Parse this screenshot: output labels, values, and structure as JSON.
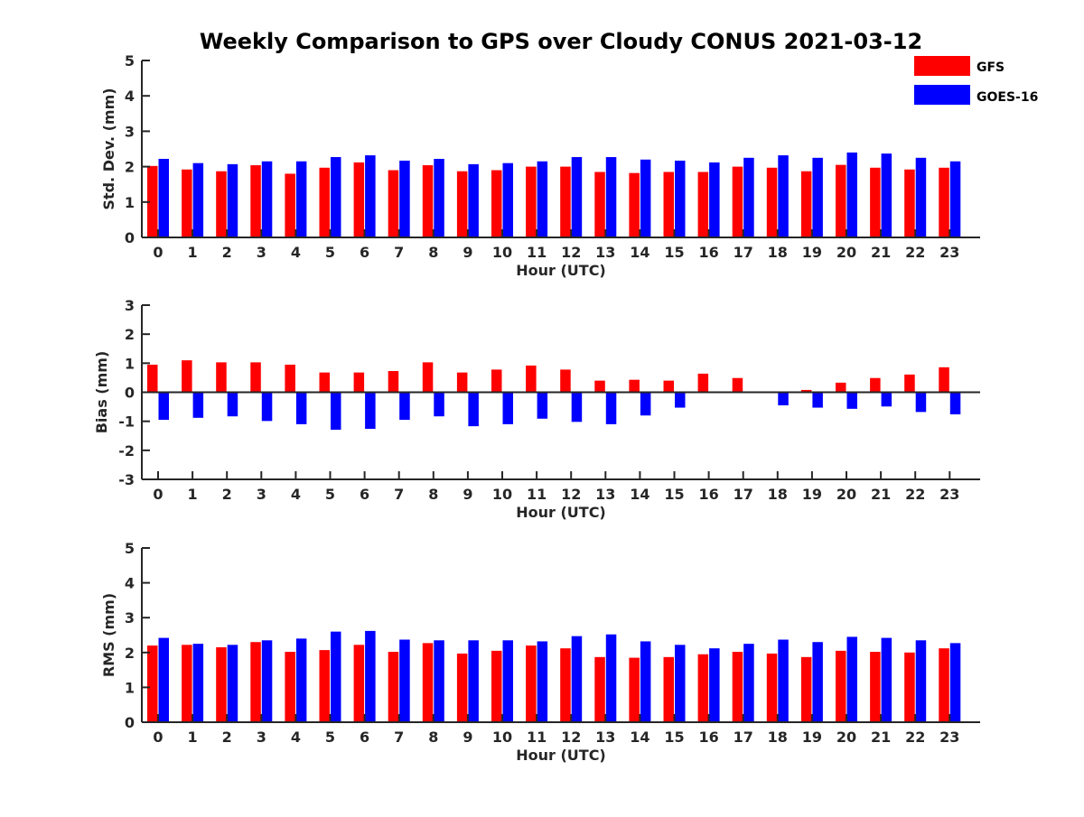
{
  "chart_data": {
    "type": "bar",
    "title": "Weekly Comparison to GPS over Cloudy CONUS 2021-03-12",
    "colors": {
      "GFS": "#ff0000",
      "GOES-16": "#0000ff"
    },
    "legend": {
      "position": "top-right",
      "entries": [
        "GFS",
        "GOES-16"
      ]
    },
    "grid": false,
    "categories": [
      "0",
      "1",
      "2",
      "3",
      "4",
      "5",
      "6",
      "7",
      "8",
      "9",
      "10",
      "11",
      "12",
      "13",
      "14",
      "15",
      "16",
      "17",
      "18",
      "19",
      "20",
      "21",
      "22",
      "23"
    ],
    "panels": [
      {
        "id": "std",
        "ylabel": "Std. Dev. (mm)",
        "xlabel": "Hour (UTC)",
        "ylim": [
          0,
          5
        ],
        "yticks": [
          0,
          1,
          2,
          3,
          4,
          5
        ],
        "series": [
          {
            "name": "GFS",
            "values": [
              2.02,
              1.92,
              1.87,
              2.04,
              1.8,
              1.97,
              2.12,
              1.9,
              2.04,
              1.87,
              1.9,
              2.0,
              2.0,
              1.85,
              1.82,
              1.85,
              1.85,
              2.0,
              1.97,
              1.87,
              2.05,
              1.97,
              1.92,
              1.97
            ]
          },
          {
            "name": "GOES-16",
            "values": [
              2.22,
              2.1,
              2.07,
              2.15,
              2.15,
              2.27,
              2.32,
              2.17,
              2.22,
              2.07,
              2.1,
              2.15,
              2.27,
              2.27,
              2.2,
              2.17,
              2.12,
              2.25,
              2.32,
              2.25,
              2.4,
              2.37,
              2.25,
              2.15
            ]
          }
        ]
      },
      {
        "id": "bias",
        "ylabel": "Bias (mm)",
        "xlabel": "Hour (UTC)",
        "ylim": [
          -3,
          3
        ],
        "yticks": [
          -3,
          -2,
          -1,
          0,
          1,
          2,
          3
        ],
        "zero_line": true,
        "series": [
          {
            "name": "GFS",
            "values": [
              0.95,
              1.1,
              1.03,
              1.03,
              0.95,
              0.68,
              0.68,
              0.73,
              1.03,
              0.68,
              0.78,
              0.92,
              0.78,
              0.4,
              0.43,
              0.4,
              0.64,
              0.49,
              -0.03,
              0.08,
              0.33,
              0.49,
              0.61,
              0.86
            ]
          },
          {
            "name": "GOES-16",
            "values": [
              -0.95,
              -0.88,
              -0.83,
              -0.99,
              -1.1,
              -1.29,
              -1.26,
              -0.95,
              -0.83,
              -1.17,
              -1.1,
              -0.91,
              -1.02,
              -1.1,
              -0.8,
              -0.53,
              0.0,
              0.0,
              -0.45,
              -0.53,
              -0.57,
              -0.49,
              -0.68,
              -0.76
            ]
          }
        ]
      },
      {
        "id": "rms",
        "ylabel": "RMS (mm)",
        "xlabel": "Hour (UTC)",
        "ylim": [
          0,
          5
        ],
        "yticks": [
          0,
          1,
          2,
          3,
          4,
          5
        ],
        "series": [
          {
            "name": "GFS",
            "values": [
              2.2,
              2.22,
              2.15,
              2.3,
              2.02,
              2.07,
              2.22,
              2.02,
              2.27,
              1.97,
              2.05,
              2.2,
              2.12,
              1.87,
              1.85,
              1.87,
              1.95,
              2.02,
              1.97,
              1.87,
              2.05,
              2.02,
              2.0,
              2.12
            ]
          },
          {
            "name": "GOES-16",
            "values": [
              2.42,
              2.25,
              2.22,
              2.35,
              2.4,
              2.6,
              2.62,
              2.37,
              2.35,
              2.35,
              2.35,
              2.32,
              2.47,
              2.52,
              2.32,
              2.22,
              2.12,
              2.25,
              2.37,
              2.3,
              2.45,
              2.42,
              2.35,
              2.27
            ]
          }
        ]
      }
    ]
  }
}
